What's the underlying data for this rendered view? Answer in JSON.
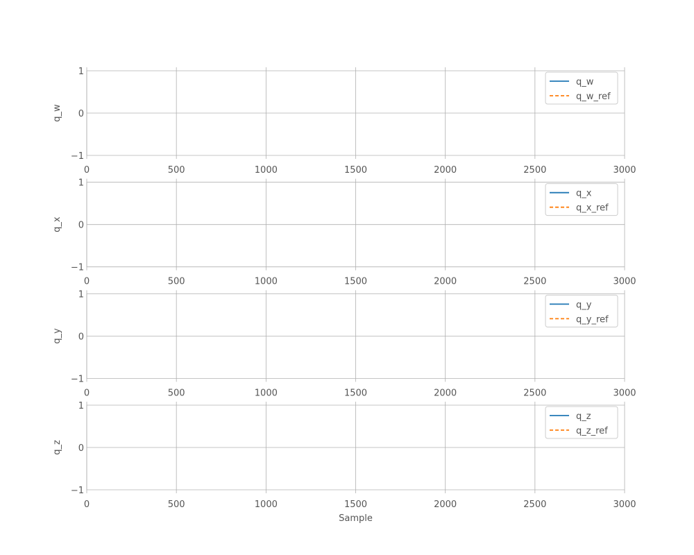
{
  "chart_data": [
    {
      "type": "line",
      "ylabel": "q_w",
      "xlabel": "",
      "xlim": [
        0,
        3000
      ],
      "ylim": [
        -1,
        1
      ],
      "xticks": [
        "0",
        "500",
        "1000",
        "1500",
        "2000",
        "2500",
        "3000"
      ],
      "yticks": [
        "−1",
        "0",
        "1"
      ],
      "grid": true,
      "legend_position": "top-right",
      "series": [
        {
          "name": "q_w",
          "style": "solid",
          "color": "#1f77b4",
          "values": []
        },
        {
          "name": "q_w_ref",
          "style": "dashed",
          "color": "#ff7f0e",
          "values": []
        }
      ]
    },
    {
      "type": "line",
      "ylabel": "q_x",
      "xlabel": "",
      "xlim": [
        0,
        3000
      ],
      "ylim": [
        -1,
        1
      ],
      "xticks": [
        "0",
        "500",
        "1000",
        "1500",
        "2000",
        "2500",
        "3000"
      ],
      "yticks": [
        "−1",
        "0",
        "1"
      ],
      "grid": true,
      "legend_position": "top-right",
      "series": [
        {
          "name": "q_x",
          "style": "solid",
          "color": "#1f77b4",
          "values": []
        },
        {
          "name": "q_x_ref",
          "style": "dashed",
          "color": "#ff7f0e",
          "values": []
        }
      ]
    },
    {
      "type": "line",
      "ylabel": "q_y",
      "xlabel": "",
      "xlim": [
        0,
        3000
      ],
      "ylim": [
        -1,
        1
      ],
      "xticks": [
        "0",
        "500",
        "1000",
        "1500",
        "2000",
        "2500",
        "3000"
      ],
      "yticks": [
        "−1",
        "0",
        "1"
      ],
      "grid": true,
      "legend_position": "top-right",
      "series": [
        {
          "name": "q_y",
          "style": "solid",
          "color": "#1f77b4",
          "values": []
        },
        {
          "name": "q_y_ref",
          "style": "dashed",
          "color": "#ff7f0e",
          "values": []
        }
      ]
    },
    {
      "type": "line",
      "ylabel": "q_z",
      "xlabel": "Sample",
      "xlim": [
        0,
        3000
      ],
      "ylim": [
        -1,
        1
      ],
      "xticks": [
        "0",
        "500",
        "1000",
        "1500",
        "2000",
        "2500",
        "3000"
      ],
      "yticks": [
        "−1",
        "0",
        "1"
      ],
      "grid": true,
      "legend_position": "top-right",
      "series": [
        {
          "name": "q_z",
          "style": "solid",
          "color": "#1f77b4",
          "values": []
        },
        {
          "name": "q_z_ref",
          "style": "dashed",
          "color": "#ff7f0e",
          "values": []
        }
      ]
    }
  ]
}
